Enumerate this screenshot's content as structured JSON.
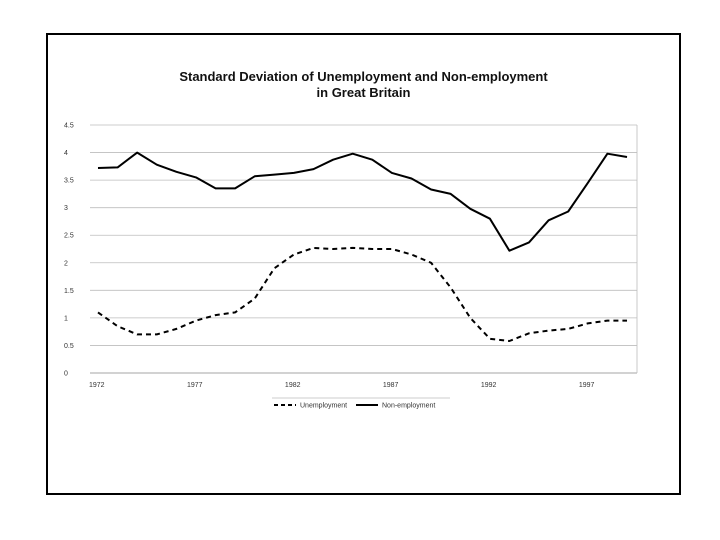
{
  "chart_data": {
    "type": "line",
    "title_line1": "Standard Deviation of Unemployment and Non-employment",
    "title_line2": "in Great Britain",
    "xlabel": "",
    "ylabel": "",
    "x": [
      1972,
      1973,
      1974,
      1975,
      1976,
      1977,
      1978,
      1979,
      1980,
      1981,
      1982,
      1983,
      1984,
      1985,
      1986,
      1987,
      1988,
      1989,
      1990,
      1991,
      1992,
      1993,
      1994,
      1995,
      1996,
      1997,
      1998,
      1999
    ],
    "x_ticks": [
      "1972",
      "1977",
      "1982",
      "1987",
      "1992",
      "1997"
    ],
    "y_ticks": [
      "0",
      "0.5",
      "1",
      "1.5",
      "2",
      "2.5",
      "3",
      "3.5",
      "4",
      "4.5"
    ],
    "ylim": [
      0,
      4.5
    ],
    "grid": true,
    "legend_position": "bottom",
    "series": [
      {
        "name": "Unemployment",
        "style": "dashed",
        "color": "#000000",
        "values": [
          1.1,
          0.85,
          0.7,
          0.7,
          0.8,
          0.95,
          1.05,
          1.1,
          1.35,
          1.9,
          2.15,
          2.27,
          2.25,
          2.27,
          2.25,
          2.25,
          2.15,
          2.0,
          1.55,
          1.0,
          0.62,
          0.58,
          0.72,
          0.77,
          0.8,
          0.9,
          0.95,
          0.95
        ]
      },
      {
        "name": "Non-employment",
        "style": "solid",
        "color": "#000000",
        "values": [
          3.72,
          3.73,
          4.0,
          3.78,
          3.65,
          3.55,
          3.35,
          3.35,
          3.57,
          3.6,
          3.63,
          3.7,
          3.87,
          3.98,
          3.87,
          3.63,
          3.53,
          3.33,
          3.25,
          2.98,
          2.8,
          2.22,
          2.37,
          2.77,
          2.93,
          3.45,
          3.98,
          3.92
        ]
      }
    ]
  }
}
